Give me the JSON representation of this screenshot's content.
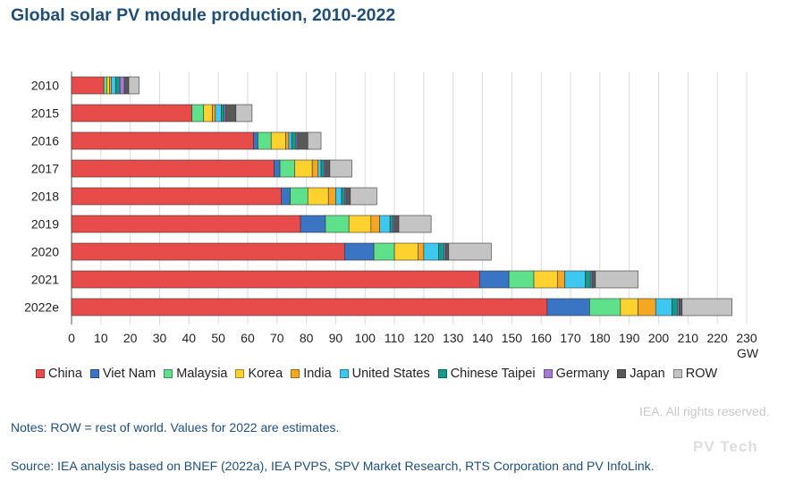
{
  "title": "Global solar PV module production, 2010-2022",
  "notes": "Notes: ROW = rest of world. Values for 2022 are estimates.",
  "source": "Source: IEA analysis based on BNEF (2022a), IEA PVPS, SPV Market Research, RTS Corporation and PV InfoLink.",
  "rights": "IEA. All rights reserved.",
  "watermark": "PV Tech",
  "colors": {
    "China": "#e84c4a",
    "Viet Nam": "#3a75c4",
    "Malaysia": "#5fe08a",
    "Korea": "#fdd22f",
    "India": "#f5a623",
    "United States": "#3fc8ef",
    "Chinese Taipei": "#159a8a",
    "Germany": "#a878d6",
    "Japan": "#595959",
    "ROW": "#c4c4c4"
  },
  "chart_data": {
    "type": "bar",
    "orientation": "horizontal",
    "stacked": true,
    "title": "Global solar PV module production, 2010-2022",
    "xlabel": "GW",
    "ylabel": "",
    "xlim": [
      0,
      230
    ],
    "xticks": [
      0,
      10,
      20,
      30,
      40,
      50,
      60,
      70,
      80,
      90,
      100,
      110,
      120,
      130,
      140,
      150,
      160,
      170,
      180,
      190,
      200,
      210,
      220,
      230
    ],
    "grid": true,
    "legend_position": "bottom",
    "categories": [
      "2010",
      "2015",
      "2016",
      "2017",
      "2018",
      "2019",
      "2020",
      "2021",
      "2022e"
    ],
    "series": [
      {
        "name": "China",
        "values": [
          11,
          41,
          62,
          69,
          71.5,
          78,
          93,
          139,
          162
        ]
      },
      {
        "name": "Viet Nam",
        "values": [
          0,
          0,
          1.5,
          2,
          3,
          8.5,
          10,
          10,
          14.5
        ]
      },
      {
        "name": "Malaysia",
        "values": [
          1,
          4,
          4.5,
          5,
          6,
          8,
          7,
          8.5,
          10.5
        ]
      },
      {
        "name": "Korea",
        "values": [
          1,
          3,
          5,
          6,
          7,
          7.5,
          8,
          8,
          6
        ]
      },
      {
        "name": "India",
        "values": [
          0.5,
          1,
          1,
          2,
          2.5,
          3,
          2,
          2.5,
          6
        ]
      },
      {
        "name": "United States",
        "values": [
          1.5,
          2,
          1,
          1,
          2,
          3.5,
          5,
          7,
          5.5
        ]
      },
      {
        "name": "Chinese Taipei",
        "values": [
          1.5,
          1,
          1.5,
          1,
          1,
          1,
          2,
          2,
          2
        ]
      },
      {
        "name": "Germany",
        "values": [
          1.5,
          0.5,
          0.5,
          0.5,
          0.5,
          0.5,
          0.5,
          0.5,
          0.5
        ]
      },
      {
        "name": "Japan",
        "values": [
          1.5,
          3.5,
          3.5,
          1.5,
          1.5,
          1.5,
          1,
          1,
          1
        ]
      },
      {
        "name": "ROW",
        "values": [
          3.5,
          5.5,
          4.5,
          7.5,
          9,
          11,
          14.5,
          14.5,
          17
        ]
      }
    ]
  }
}
